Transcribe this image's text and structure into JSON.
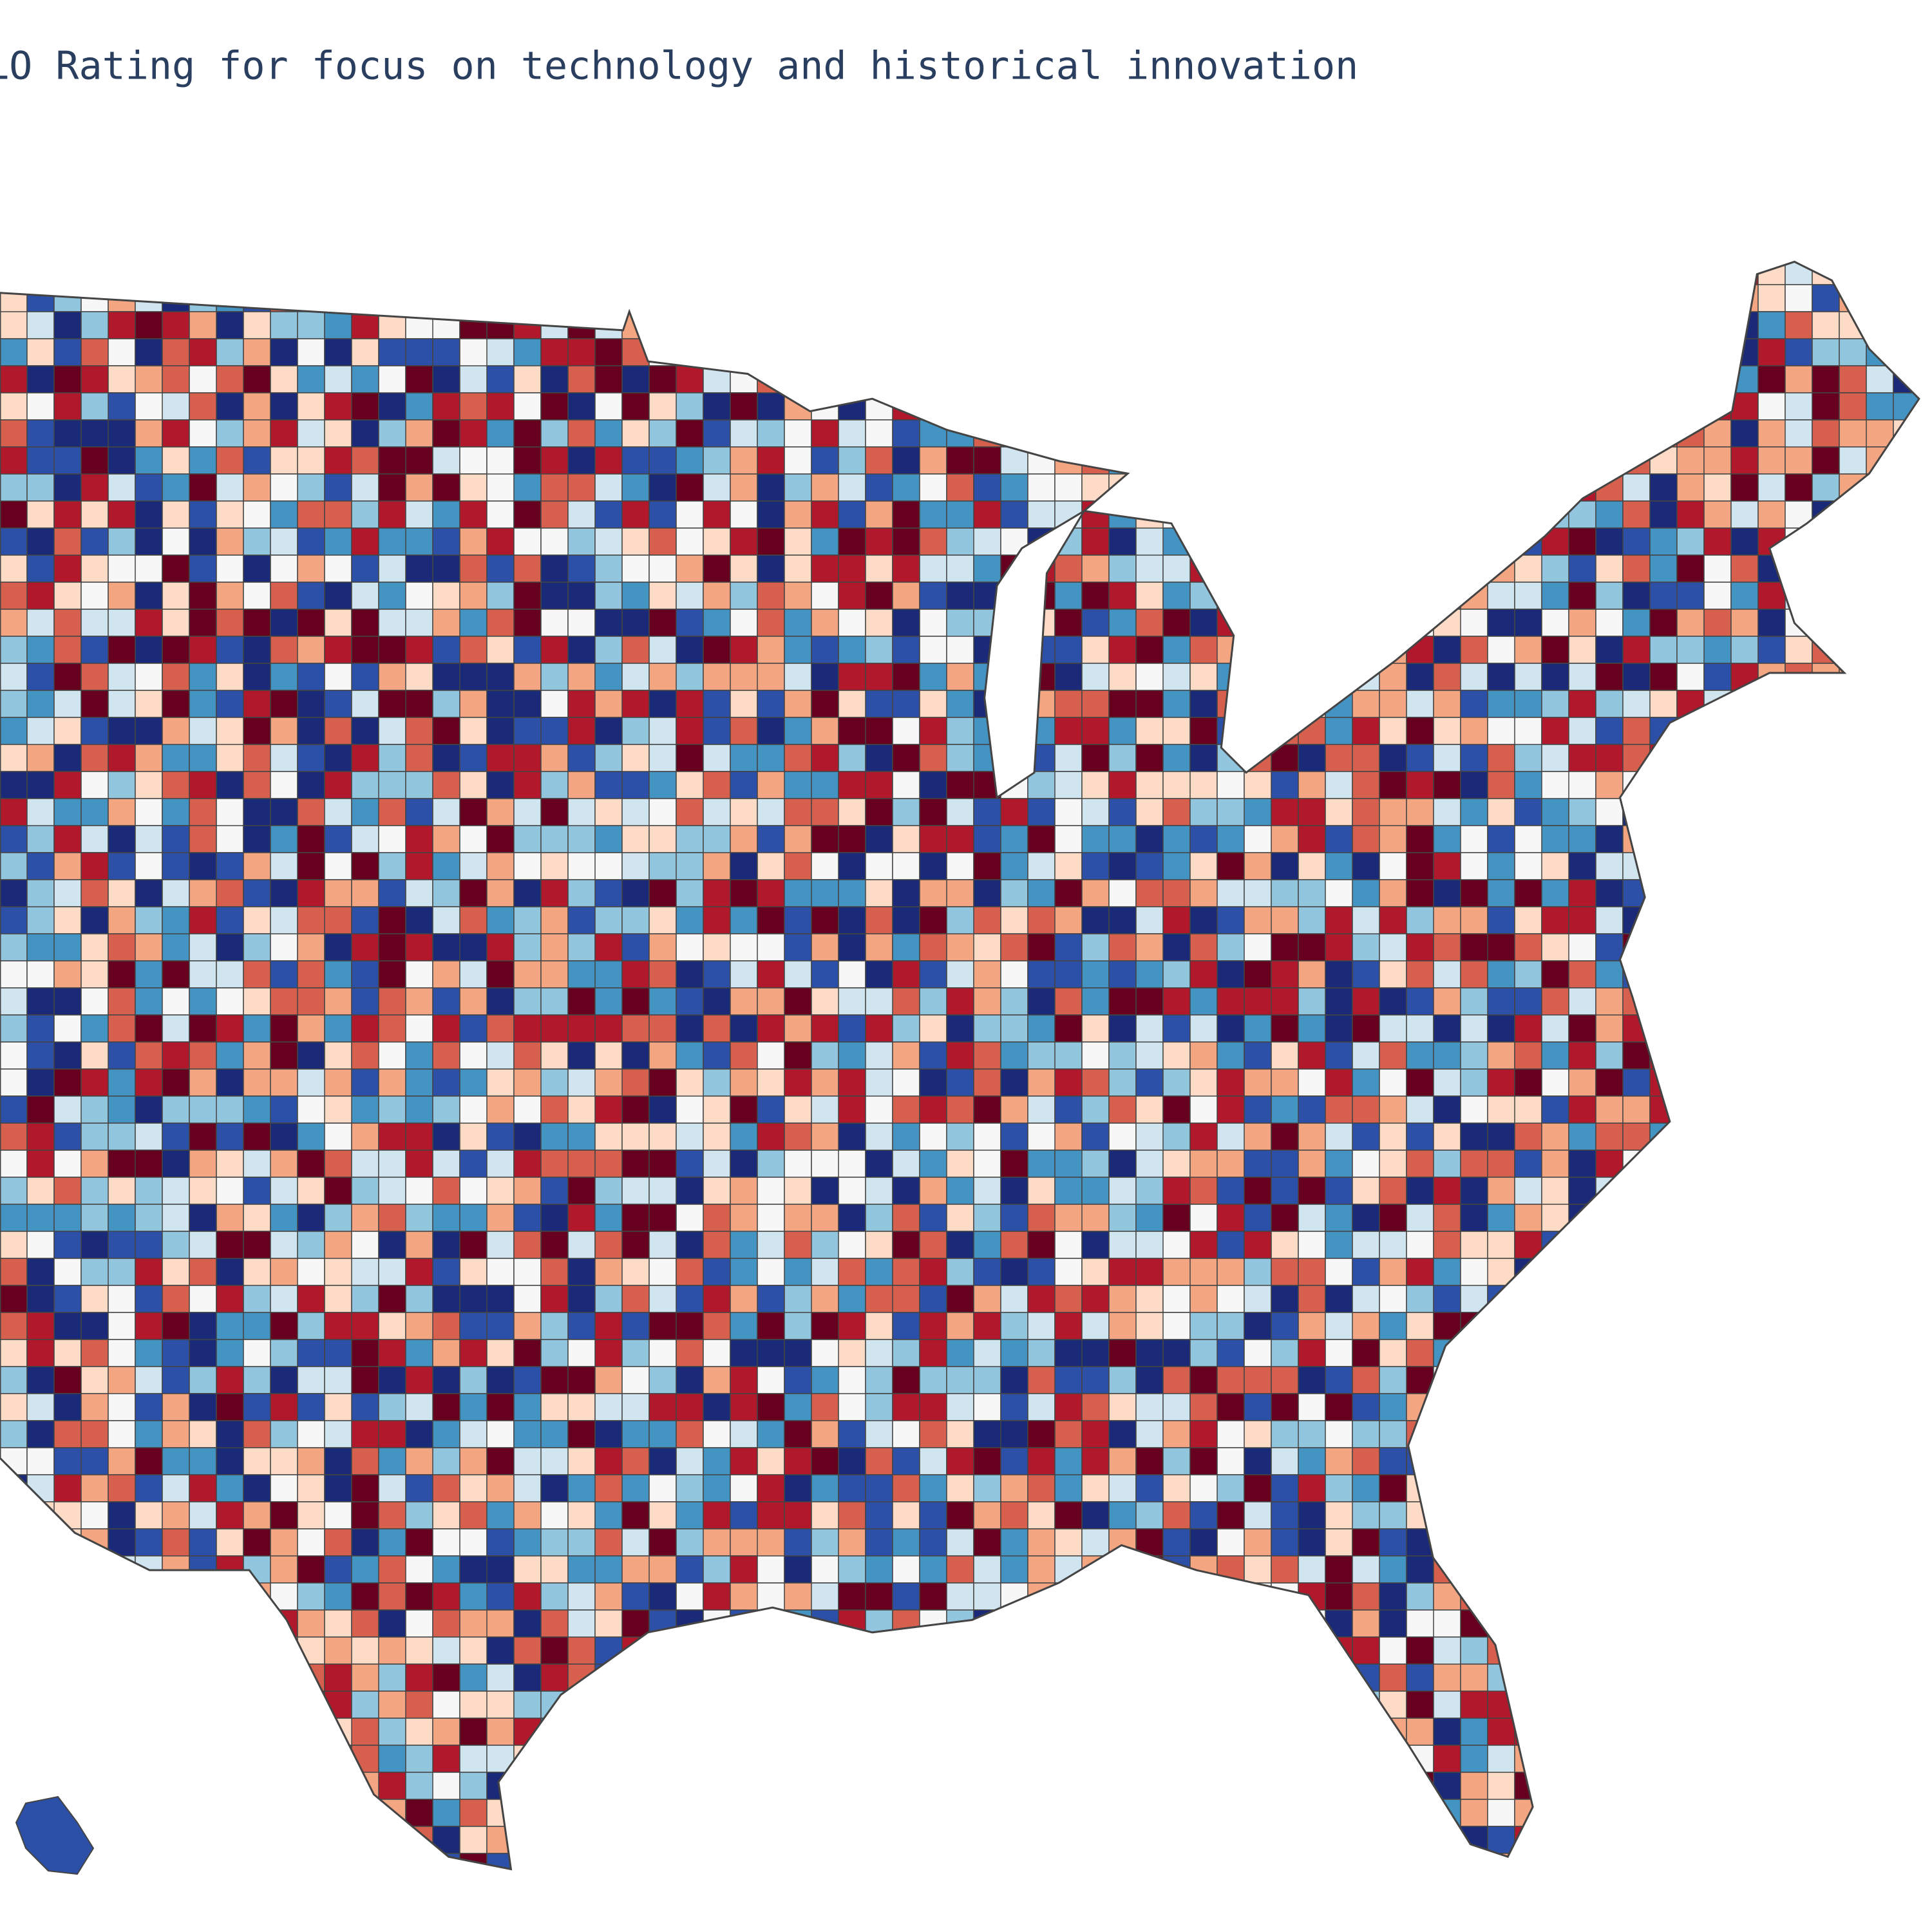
{
  "title": "LO Rating for focus on technology and historical innovation",
  "map": {
    "colorscale": [
      "#67001f",
      "#b2182b",
      "#d6604d",
      "#f4a582",
      "#fddbc7",
      "#f7f7f7",
      "#d1e5f0",
      "#92c5de",
      "#4393c3",
      "#2c4fa8",
      "#1a2a78"
    ]
  }
}
